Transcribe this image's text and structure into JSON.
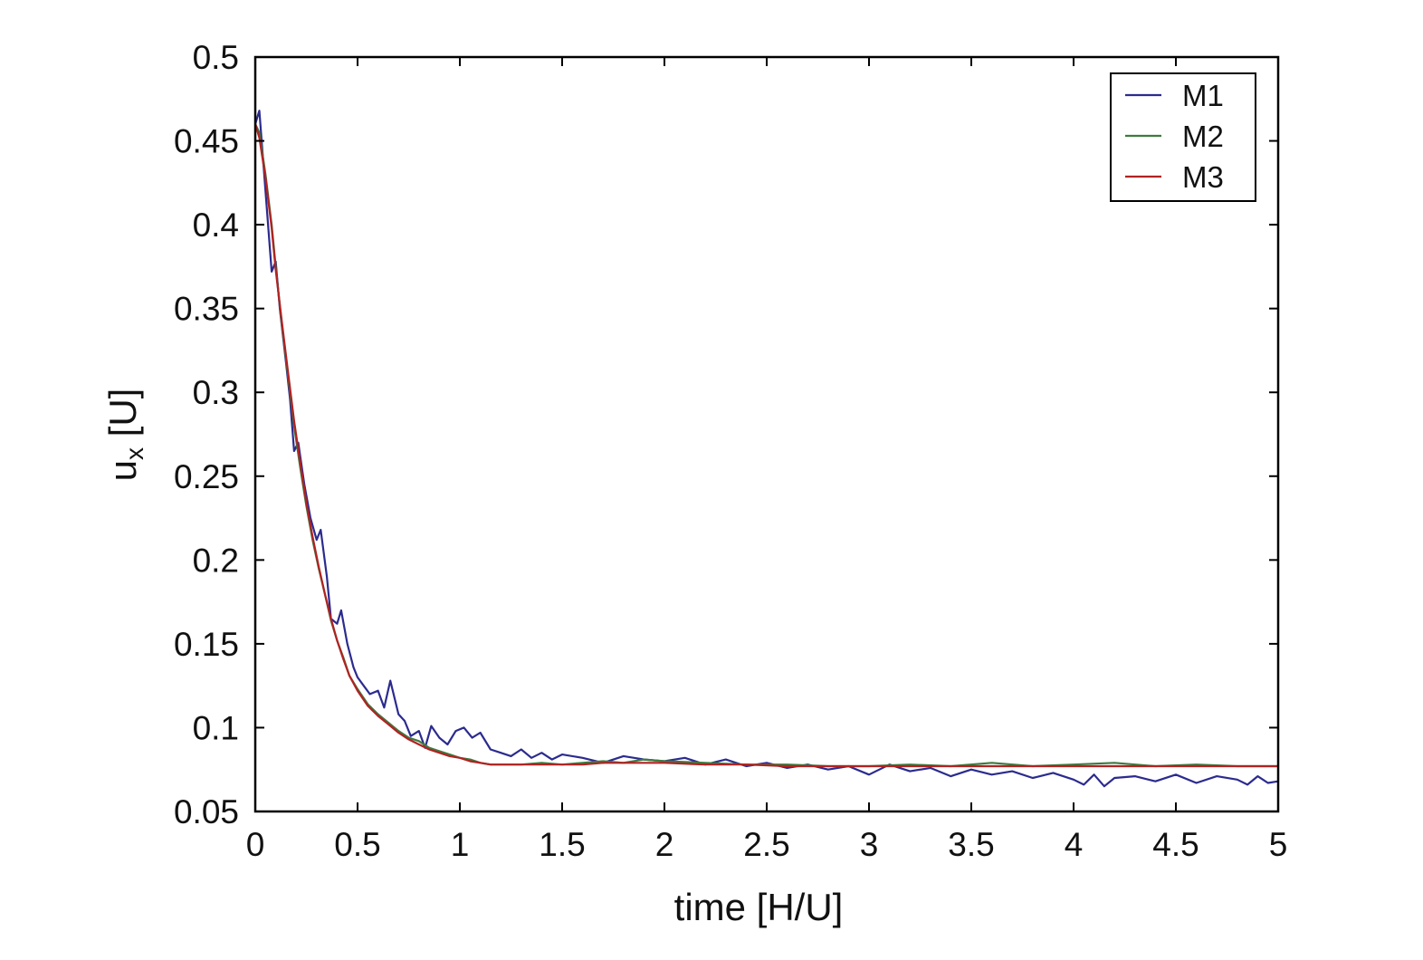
{
  "chart_data": {
    "type": "line",
    "xlabel": "time [H/U]",
    "ylabel": {
      "main": "u",
      "sub": "x",
      "unit": "[U]"
    },
    "xlim": [
      0,
      5
    ],
    "ylim": [
      0.05,
      0.5
    ],
    "xticks": [
      0,
      0.5,
      1,
      1.5,
      2,
      2.5,
      3,
      3.5,
      4,
      4.5,
      5
    ],
    "xtick_labels": [
      "0",
      "0.5",
      "1",
      "1.5",
      "2",
      "2.5",
      "3",
      "3.5",
      "4",
      "4.5",
      "5"
    ],
    "yticks": [
      0.05,
      0.1,
      0.15,
      0.2,
      0.25,
      0.3,
      0.35,
      0.4,
      0.45,
      0.5
    ],
    "ytick_labels": [
      "0.05",
      "0.1",
      "0.15",
      "0.2",
      "0.25",
      "0.3",
      "0.35",
      "0.4",
      "0.45",
      "0.5"
    ],
    "grid": false,
    "legend_position": "top-right",
    "series": [
      {
        "name": "M1",
        "color": "#2b2b8f",
        "x": [
          0,
          0.02,
          0.05,
          0.08,
          0.1,
          0.12,
          0.15,
          0.17,
          0.19,
          0.21,
          0.24,
          0.27,
          0.3,
          0.32,
          0.35,
          0.37,
          0.4,
          0.42,
          0.45,
          0.48,
          0.5,
          0.53,
          0.56,
          0.6,
          0.63,
          0.66,
          0.7,
          0.73,
          0.76,
          0.8,
          0.83,
          0.86,
          0.9,
          0.94,
          0.98,
          1.02,
          1.06,
          1.1,
          1.15,
          1.2,
          1.25,
          1.3,
          1.35,
          1.4,
          1.45,
          1.5,
          1.6,
          1.7,
          1.8,
          1.9,
          2.0,
          2.1,
          2.2,
          2.3,
          2.4,
          2.5,
          2.6,
          2.7,
          2.8,
          2.9,
          3.0,
          3.1,
          3.2,
          3.3,
          3.4,
          3.5,
          3.6,
          3.7,
          3.8,
          3.9,
          4.0,
          4.05,
          4.1,
          4.15,
          4.2,
          4.3,
          4.4,
          4.5,
          4.6,
          4.7,
          4.8,
          4.85,
          4.9,
          4.95,
          5.0
        ],
        "y": [
          0.46,
          0.468,
          0.42,
          0.372,
          0.378,
          0.35,
          0.318,
          0.296,
          0.265,
          0.27,
          0.245,
          0.225,
          0.212,
          0.218,
          0.19,
          0.165,
          0.162,
          0.17,
          0.15,
          0.136,
          0.13,
          0.125,
          0.12,
          0.122,
          0.112,
          0.128,
          0.108,
          0.104,
          0.095,
          0.098,
          0.088,
          0.101,
          0.094,
          0.09,
          0.098,
          0.1,
          0.094,
          0.097,
          0.087,
          0.085,
          0.083,
          0.087,
          0.082,
          0.085,
          0.081,
          0.084,
          0.082,
          0.079,
          0.083,
          0.081,
          0.08,
          0.082,
          0.078,
          0.081,
          0.077,
          0.079,
          0.076,
          0.078,
          0.075,
          0.077,
          0.072,
          0.078,
          0.074,
          0.076,
          0.071,
          0.075,
          0.072,
          0.074,
          0.07,
          0.073,
          0.069,
          0.066,
          0.072,
          0.065,
          0.07,
          0.071,
          0.068,
          0.072,
          0.067,
          0.071,
          0.069,
          0.066,
          0.071,
          0.067,
          0.068
        ]
      },
      {
        "name": "M2",
        "color": "#3f7a3f",
        "x": [
          0,
          0.02,
          0.05,
          0.08,
          0.1,
          0.13,
          0.16,
          0.19,
          0.22,
          0.25,
          0.28,
          0.31,
          0.34,
          0.37,
          0.4,
          0.43,
          0.46,
          0.5,
          0.55,
          0.6,
          0.65,
          0.7,
          0.75,
          0.8,
          0.85,
          0.9,
          0.95,
          1.0,
          1.05,
          1.1,
          1.15,
          1.2,
          1.3,
          1.4,
          1.5,
          1.6,
          1.7,
          1.8,
          1.9,
          2.0,
          2.2,
          2.4,
          2.6,
          2.8,
          3.0,
          3.2,
          3.4,
          3.6,
          3.8,
          4.0,
          4.2,
          4.4,
          4.6,
          4.8,
          5.0
        ],
        "y": [
          0.46,
          0.455,
          0.43,
          0.4,
          0.375,
          0.34,
          0.31,
          0.28,
          0.255,
          0.232,
          0.212,
          0.195,
          0.18,
          0.164,
          0.152,
          0.142,
          0.131,
          0.123,
          0.114,
          0.108,
          0.103,
          0.098,
          0.094,
          0.092,
          0.088,
          0.086,
          0.084,
          0.082,
          0.081,
          0.079,
          0.078,
          0.078,
          0.078,
          0.079,
          0.078,
          0.079,
          0.08,
          0.079,
          0.081,
          0.08,
          0.079,
          0.078,
          0.078,
          0.077,
          0.077,
          0.078,
          0.077,
          0.079,
          0.077,
          0.078,
          0.079,
          0.077,
          0.078,
          0.077,
          0.077
        ]
      },
      {
        "name": "M3",
        "color": "#b22222",
        "x": [
          0,
          0.02,
          0.05,
          0.08,
          0.1,
          0.13,
          0.16,
          0.19,
          0.22,
          0.25,
          0.28,
          0.31,
          0.34,
          0.37,
          0.4,
          0.43,
          0.46,
          0.5,
          0.55,
          0.6,
          0.65,
          0.7,
          0.75,
          0.8,
          0.85,
          0.9,
          0.95,
          1.0,
          1.05,
          1.1,
          1.15,
          1.2,
          1.3,
          1.4,
          1.5,
          1.6,
          1.7,
          1.8,
          1.9,
          2.0,
          2.2,
          2.4,
          2.6,
          2.8,
          3.0,
          3.2,
          3.4,
          3.6,
          3.8,
          4.0,
          4.2,
          4.4,
          4.6,
          4.8,
          5.0
        ],
        "y": [
          0.46,
          0.452,
          0.428,
          0.398,
          0.373,
          0.342,
          0.312,
          0.283,
          0.258,
          0.234,
          0.214,
          0.196,
          0.18,
          0.165,
          0.152,
          0.141,
          0.131,
          0.122,
          0.113,
          0.107,
          0.102,
          0.097,
          0.093,
          0.09,
          0.087,
          0.085,
          0.083,
          0.082,
          0.08,
          0.079,
          0.078,
          0.078,
          0.078,
          0.078,
          0.078,
          0.078,
          0.079,
          0.079,
          0.079,
          0.079,
          0.078,
          0.078,
          0.077,
          0.077,
          0.077,
          0.077,
          0.077,
          0.077,
          0.077,
          0.077,
          0.077,
          0.077,
          0.077,
          0.077,
          0.077
        ]
      }
    ]
  }
}
